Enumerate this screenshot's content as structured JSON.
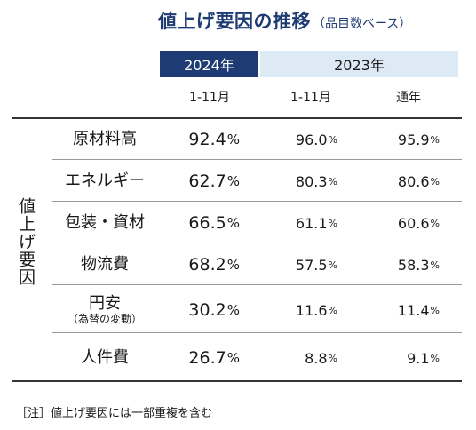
{
  "title": {
    "main": "値上げ要因の推移",
    "sub": "（品目数ベース）"
  },
  "headers": {
    "year_2024": "2024年",
    "year_2023": "2023年",
    "sub_2024": "1-11月",
    "sub_2023_a": "1-11月",
    "sub_2023_b": "通年"
  },
  "side_label": "値上げ要因",
  "percent_sign": "%",
  "rows": [
    {
      "label": "原材料高",
      "note": "",
      "v2024": "92.4",
      "v2023_nov": "96.0",
      "v2023_full": "95.9"
    },
    {
      "label": "エネルギー",
      "note": "",
      "v2024": "62.7",
      "v2023_nov": "80.3",
      "v2023_full": "80.6"
    },
    {
      "label": "包装・資材",
      "note": "",
      "v2024": "66.5",
      "v2023_nov": "61.1",
      "v2023_full": "60.6"
    },
    {
      "label": "物流費",
      "note": "",
      "v2024": "68.2",
      "v2023_nov": "57.5",
      "v2023_full": "58.3"
    },
    {
      "label": "円安",
      "note": "（為替の変動）",
      "v2024": "30.2",
      "v2023_nov": "11.6",
      "v2023_full": "11.4"
    },
    {
      "label": "人件費",
      "note": "",
      "v2024": "26.7",
      "v2023_nov": "8.8",
      "v2023_full": "9.1"
    }
  ],
  "footnote": "［注］値上げ要因には一部重複を含む",
  "colors": {
    "navy": "#1f3b73",
    "light_blue": "#dde9f5"
  }
}
